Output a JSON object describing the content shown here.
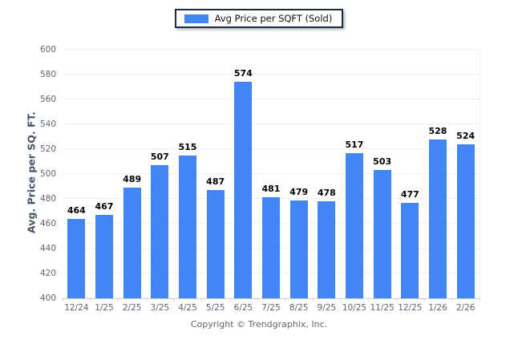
{
  "chart_data": {
    "type": "bar",
    "title": "",
    "legend_label": "Avg Price per SQFT (Sold)",
    "legend_position": "top-center",
    "categories": [
      "12/24",
      "1/25",
      "2/25",
      "3/25",
      "4/25",
      "5/25",
      "6/25",
      "7/25",
      "8/25",
      "9/25",
      "10/25",
      "11/25",
      "12/25",
      "1/26",
      "2/26"
    ],
    "values": [
      464,
      467,
      489,
      507,
      515,
      487,
      574,
      481,
      479,
      478,
      517,
      503,
      477,
      528,
      524
    ],
    "xlabel": "",
    "ylabel": "Avg. Price per SQ. FT.",
    "ylim": [
      400,
      600
    ],
    "ytick_step": 20,
    "grid": "horizontal",
    "value_labels": true
  },
  "colors": {
    "bar": "#4285f4",
    "grid": "#edeff3",
    "axis": "#c9ced6",
    "tick_text": "#5b6875",
    "legend_border": "#1d2b4a",
    "ylabel_text": "#44546a",
    "footer_text": "#666666"
  },
  "footer": {
    "text": "Copyright © Trendgraphix, Inc."
  }
}
